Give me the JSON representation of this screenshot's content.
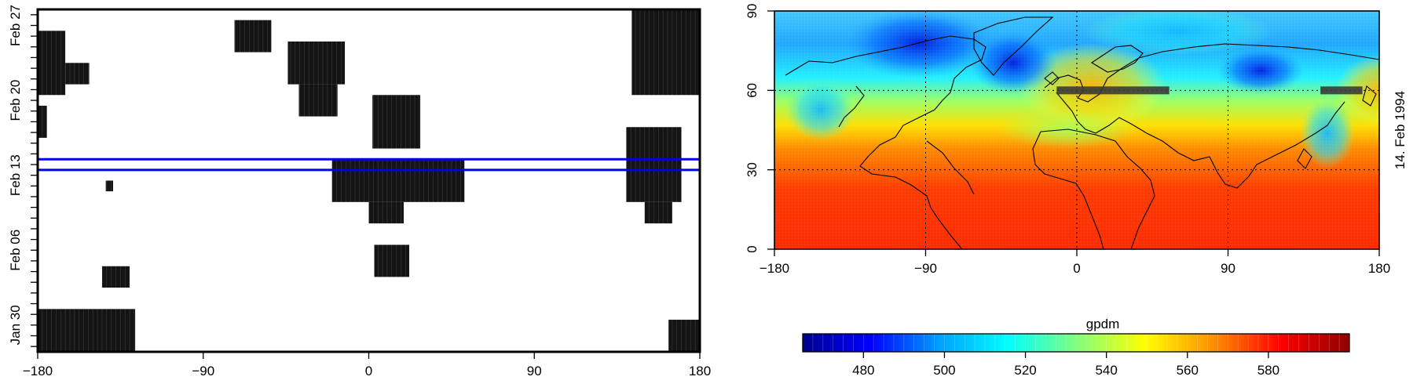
{
  "chart_data": [
    {
      "type": "heatmap",
      "description_role": "blocking-event hovmoller (longitude vs time)",
      "xlim": [
        -180,
        180
      ],
      "x_ticks": [
        -180,
        -90,
        0,
        90,
        180
      ],
      "x_tick_labels": [
        "−180",
        "−90",
        "0",
        "90",
        "180"
      ],
      "y_tick_labels": [
        "Jan 30",
        "Feb 06",
        "Feb 13",
        "Feb 20",
        "Feb 27"
      ],
      "y_tick_dates": [
        "1994-01-30",
        "1994-02-06",
        "1994-02-13",
        "1994-02-20",
        "1994-02-27"
      ],
      "y_range_dates": [
        "1994-01-28",
        "1994-02-28"
      ],
      "marked_day": "1994-02-14",
      "marker_color": "#0000ee",
      "cell_color": "#141414",
      "blocked_regions": [
        {
          "lon": [
            -180,
            -165
          ],
          "dates": [
            "1994-02-21",
            "1994-02-26"
          ]
        },
        {
          "lon": [
            -165,
            -152
          ],
          "dates": [
            "1994-02-22",
            "1994-02-23"
          ]
        },
        {
          "lon": [
            -180,
            -175
          ],
          "dates": [
            "1994-02-17",
            "1994-02-19"
          ]
        },
        {
          "lon": [
            -143,
            -139
          ],
          "dates": [
            "1994-02-12",
            "1994-02-12"
          ]
        },
        {
          "lon": [
            -145,
            -130
          ],
          "dates": [
            "1994-02-03",
            "1994-02-04"
          ]
        },
        {
          "lon": [
            -180,
            -127
          ],
          "dates": [
            "1994-01-28",
            "1994-01-31"
          ]
        },
        {
          "lon": [
            -73,
            -53
          ],
          "dates": [
            "1994-02-25",
            "1994-02-27"
          ]
        },
        {
          "lon": [
            -44,
            -13
          ],
          "dates": [
            "1994-02-22",
            "1994-02-25"
          ]
        },
        {
          "lon": [
            -38,
            -17
          ],
          "dates": [
            "1994-02-19",
            "1994-02-21"
          ]
        },
        {
          "lon": [
            2,
            28
          ],
          "dates": [
            "1994-02-16",
            "1994-02-20"
          ]
        },
        {
          "lon": [
            -20,
            52
          ],
          "dates": [
            "1994-02-11",
            "1994-02-14"
          ]
        },
        {
          "lon": [
            0,
            19
          ],
          "dates": [
            "1994-02-09",
            "1994-02-10"
          ]
        },
        {
          "lon": [
            3,
            22
          ],
          "dates": [
            "1994-02-04",
            "1994-02-06"
          ]
        },
        {
          "lon": [
            143,
            180
          ],
          "dates": [
            "1994-02-21",
            "1994-02-28"
          ]
        },
        {
          "lon": [
            140,
            170
          ],
          "dates": [
            "1994-02-11",
            "1994-02-17"
          ]
        },
        {
          "lon": [
            150,
            165
          ],
          "dates": [
            "1994-02-09",
            "1994-02-10"
          ]
        },
        {
          "lon": [
            163,
            180
          ],
          "dates": [
            "1994-01-28",
            "1994-01-30"
          ]
        }
      ]
    },
    {
      "type": "heatmap",
      "description_role": "geopotential height map",
      "xlim": [
        -180,
        180
      ],
      "ylim": [
        0,
        90
      ],
      "x_ticks": [
        -180,
        -90,
        0,
        90,
        180
      ],
      "x_tick_labels": [
        "−180",
        "−90",
        "0",
        "90",
        "180"
      ],
      "y_ticks": [
        0,
        30,
        60,
        90
      ],
      "y_tick_labels": [
        "0",
        "30",
        "60",
        "90"
      ],
      "side_label": "14. Feb 1994",
      "grid": "dotted at 30° and 90°",
      "blocked_bars": [
        {
          "lat": 60,
          "lon": [
            -12,
            55
          ]
        },
        {
          "lat": 60,
          "lon": [
            145,
            170
          ]
        }
      ],
      "colorbar": {
        "title": "gpdm",
        "range": [
          465,
          600
        ],
        "ticks": [
          480,
          500,
          520,
          540,
          560,
          580
        ],
        "tick_labels": [
          "480",
          "500",
          "520",
          "540",
          "560",
          "580"
        ],
        "colors": [
          "#00008f",
          "#0000ff",
          "#00a0ff",
          "#00ffff",
          "#7fff7f",
          "#ffff00",
          "#ff9000",
          "#ff0000",
          "#8f0000"
        ]
      }
    }
  ]
}
